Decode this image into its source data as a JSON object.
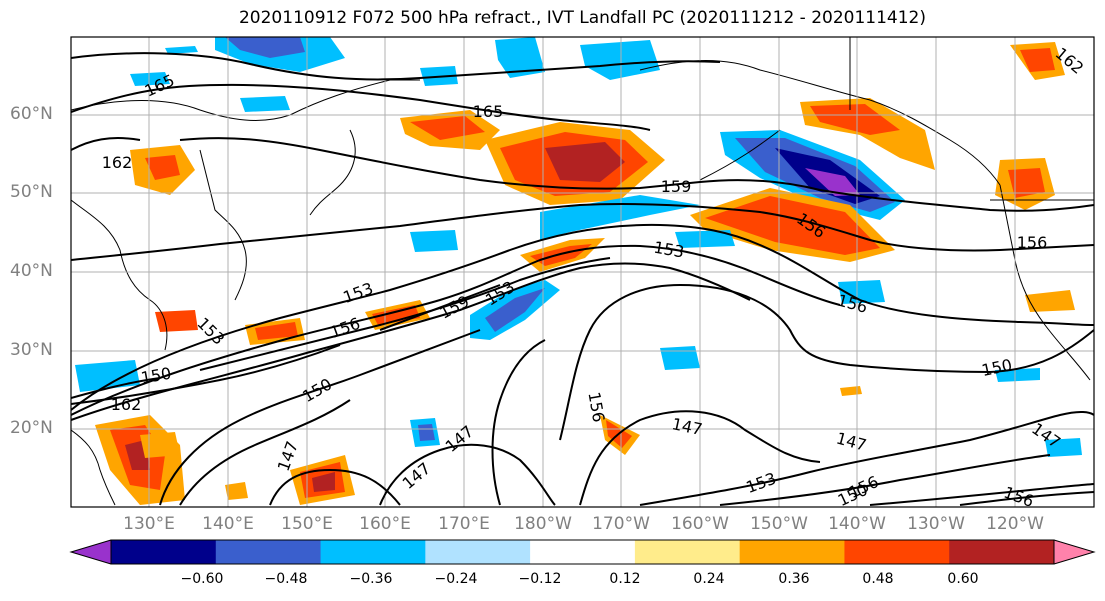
{
  "title": "2020110912 F072 500 hPa refract., IVT Landfall PC (2020111212 - 2020111412)",
  "lat_labels": [
    "60°N",
    "50°N",
    "40°N",
    "30°N",
    "20°N"
  ],
  "lon_labels": [
    "130°E",
    "140°E",
    "150°E",
    "160°E",
    "170°E",
    "180°W",
    "170°W",
    "160°W",
    "150°W",
    "140°W",
    "130°W",
    "120°W"
  ],
  "colorbar": {
    "ticks": [
      "−0.60",
      "−0.48",
      "−0.36",
      "−0.24",
      "−0.12",
      "0.12",
      "0.24",
      "0.36",
      "0.48",
      "0.60"
    ],
    "colors": [
      "#9932cc",
      "#00008b",
      "#3a5fcd",
      "#00bfff",
      "#b0e2ff",
      "#ffffff",
      "#ffec8b",
      "#ffa500",
      "#ff4500",
      "#b22222",
      "#ff82ab"
    ]
  },
  "contour_labels": [
    "165",
    "165",
    "162",
    "159",
    "156",
    "156",
    "153",
    "153",
    "159",
    "153",
    "156",
    "156",
    "153",
    "150",
    "162",
    "150",
    "147",
    "147",
    "147",
    "147",
    "156",
    "147",
    "150",
    "153",
    "156",
    "150",
    "147",
    "156",
    "162"
  ]
}
